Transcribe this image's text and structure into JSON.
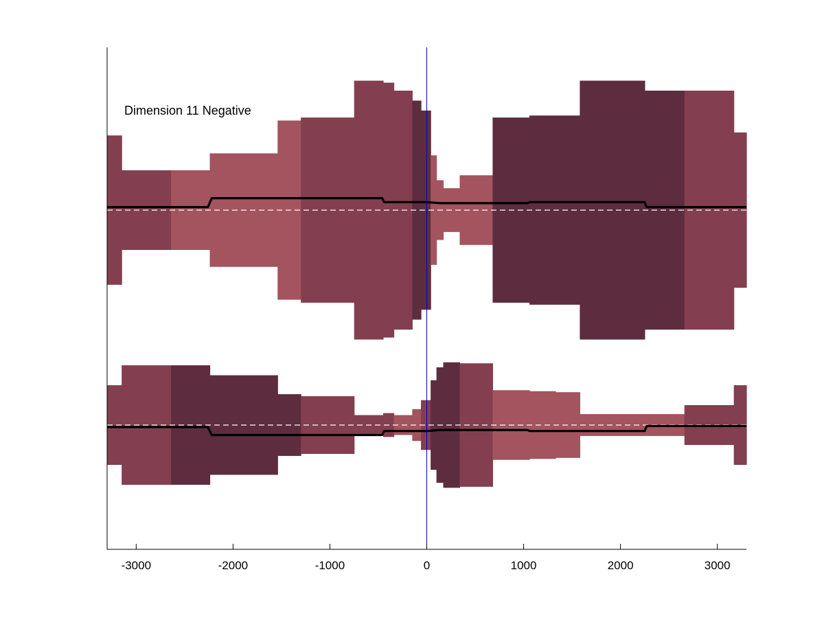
{
  "chart_data": {
    "type": "area",
    "annotation": "Dimension 11 Negative",
    "xlim": [
      -3300,
      3300
    ],
    "xticks": [
      -3000,
      -2000,
      -1000,
      0,
      1000,
      2000,
      3000
    ],
    "xtick_labels": [
      "-3000",
      "-2000",
      "-1000",
      "0",
      "1000",
      "2000",
      "3000"
    ],
    "xlabel": "",
    "ylabel": "",
    "ylim": [
      -6.0,
      3.0
    ],
    "grid": false,
    "zero_line_x": 0,
    "colors": {
      "zero_line": "#0000cc",
      "mean_line": "#000000",
      "baseline": "#ffffff",
      "shade_light": "#a3545e",
      "shade_mid": "#833f4f",
      "shade_dark": "#5e2c3f"
    },
    "panels": [
      {
        "name": "upper",
        "baseline": 0,
        "bands": [
          {
            "x0": -3300,
            "x1": -3150,
            "half": 0.75,
            "shade": "mid"
          },
          {
            "x0": -3150,
            "x1": -2640,
            "half": 0.4,
            "shade": "mid"
          },
          {
            "x0": -2640,
            "x1": -2240,
            "half": 0.4,
            "shade": "light"
          },
          {
            "x0": -2240,
            "x1": -1540,
            "half": 0.57,
            "shade": "light"
          },
          {
            "x0": -1540,
            "x1": -1300,
            "half": 0.9,
            "shade": "light"
          },
          {
            "x0": -1300,
            "x1": -750,
            "half": 0.93,
            "shade": "mid"
          },
          {
            "x0": -750,
            "x1": -450,
            "half": 1.3,
            "shade": "mid"
          },
          {
            "x0": -450,
            "x1": -340,
            "half": 1.28,
            "shade": "mid"
          },
          {
            "x0": -340,
            "x1": -150,
            "half": 1.2,
            "shade": "mid"
          },
          {
            "x0": -150,
            "x1": -60,
            "half": 1.1,
            "shade": "dark"
          },
          {
            "x0": -60,
            "x1": 40,
            "half": 1.0,
            "shade": "dark"
          },
          {
            "x0": 40,
            "x1": 100,
            "half": 0.55,
            "shade": "light"
          },
          {
            "x0": 100,
            "x1": 170,
            "half": 0.3,
            "shade": "light"
          },
          {
            "x0": 170,
            "x1": 340,
            "half": 0.22,
            "shade": "light"
          },
          {
            "x0": 340,
            "x1": 680,
            "half": 0.35,
            "shade": "light"
          },
          {
            "x0": 680,
            "x1": 1060,
            "half": 0.93,
            "shade": "dark"
          },
          {
            "x0": 1060,
            "x1": 1330,
            "half": 0.95,
            "shade": "dark"
          },
          {
            "x0": 1330,
            "x1": 1580,
            "half": 0.95,
            "shade": "dark"
          },
          {
            "x0": 1580,
            "x1": 2250,
            "half": 1.3,
            "shade": "dark"
          },
          {
            "x0": 2250,
            "x1": 2660,
            "half": 1.2,
            "shade": "dark"
          },
          {
            "x0": 2660,
            "x1": 3170,
            "half": 1.2,
            "shade": "mid"
          },
          {
            "x0": 3170,
            "x1": 3300,
            "half": 0.78,
            "shade": "mid"
          }
        ],
        "mean_line": {
          "x": [
            -3300,
            -2260,
            -2220,
            -1040,
            -1020,
            -460,
            -440,
            0,
            140,
            160,
            460,
            480,
            1040,
            1060,
            2250,
            2270,
            3300
          ],
          "y": [
            0.03,
            0.03,
            0.12,
            0.12,
            0.12,
            0.12,
            0.08,
            0.08,
            0.07,
            0.07,
            0.07,
            0.07,
            0.07,
            0.08,
            0.08,
            0.03,
            0.03
          ]
        }
      },
      {
        "name": "lower",
        "baseline": 0,
        "bands": [
          {
            "x0": -3300,
            "x1": -3150,
            "half": 0.4,
            "shade": "mid"
          },
          {
            "x0": -3150,
            "x1": -2640,
            "half": 0.6,
            "shade": "mid"
          },
          {
            "x0": -2640,
            "x1": -2240,
            "half": 0.6,
            "shade": "dark"
          },
          {
            "x0": -2240,
            "x1": -1540,
            "half": 0.5,
            "shade": "dark"
          },
          {
            "x0": -1540,
            "x1": -1300,
            "half": 0.31,
            "shade": "dark"
          },
          {
            "x0": -1300,
            "x1": -750,
            "half": 0.29,
            "shade": "mid"
          },
          {
            "x0": -750,
            "x1": -450,
            "half": 0.1,
            "shade": "mid"
          },
          {
            "x0": -450,
            "x1": -340,
            "half": 0.12,
            "shade": "mid"
          },
          {
            "x0": -340,
            "x1": -150,
            "half": 0.1,
            "shade": "light"
          },
          {
            "x0": -150,
            "x1": -60,
            "half": 0.16,
            "shade": "light"
          },
          {
            "x0": -60,
            "x1": 40,
            "half": 0.25,
            "shade": "mid"
          },
          {
            "x0": 40,
            "x1": 100,
            "half": 0.45,
            "shade": "dark"
          },
          {
            "x0": 100,
            "x1": 170,
            "half": 0.58,
            "shade": "dark"
          },
          {
            "x0": 170,
            "x1": 340,
            "half": 0.63,
            "shade": "dark"
          },
          {
            "x0": 340,
            "x1": 680,
            "half": 0.62,
            "shade": "mid"
          },
          {
            "x0": 680,
            "x1": 1060,
            "half": 0.35,
            "shade": "light"
          },
          {
            "x0": 1060,
            "x1": 1330,
            "half": 0.34,
            "shade": "light"
          },
          {
            "x0": 1330,
            "x1": 1580,
            "half": 0.33,
            "shade": "light"
          },
          {
            "x0": 1580,
            "x1": 2250,
            "half": 0.11,
            "shade": "light"
          },
          {
            "x0": 2250,
            "x1": 2660,
            "half": 0.11,
            "shade": "light"
          },
          {
            "x0": 2660,
            "x1": 3170,
            "half": 0.2,
            "shade": "mid"
          },
          {
            "x0": 3170,
            "x1": 3300,
            "half": 0.4,
            "shade": "mid"
          }
        ],
        "mean_line": {
          "x": [
            -3300,
            -2260,
            -2220,
            -1040,
            -1020,
            -460,
            -440,
            0,
            140,
            160,
            460,
            480,
            1040,
            1060,
            2250,
            2270,
            3300
          ],
          "y": [
            -0.02,
            -0.02,
            -0.1,
            -0.1,
            -0.1,
            -0.1,
            -0.06,
            -0.06,
            -0.05,
            -0.05,
            -0.05,
            -0.05,
            -0.05,
            -0.06,
            -0.06,
            -0.01,
            -0.01
          ]
        }
      }
    ]
  }
}
